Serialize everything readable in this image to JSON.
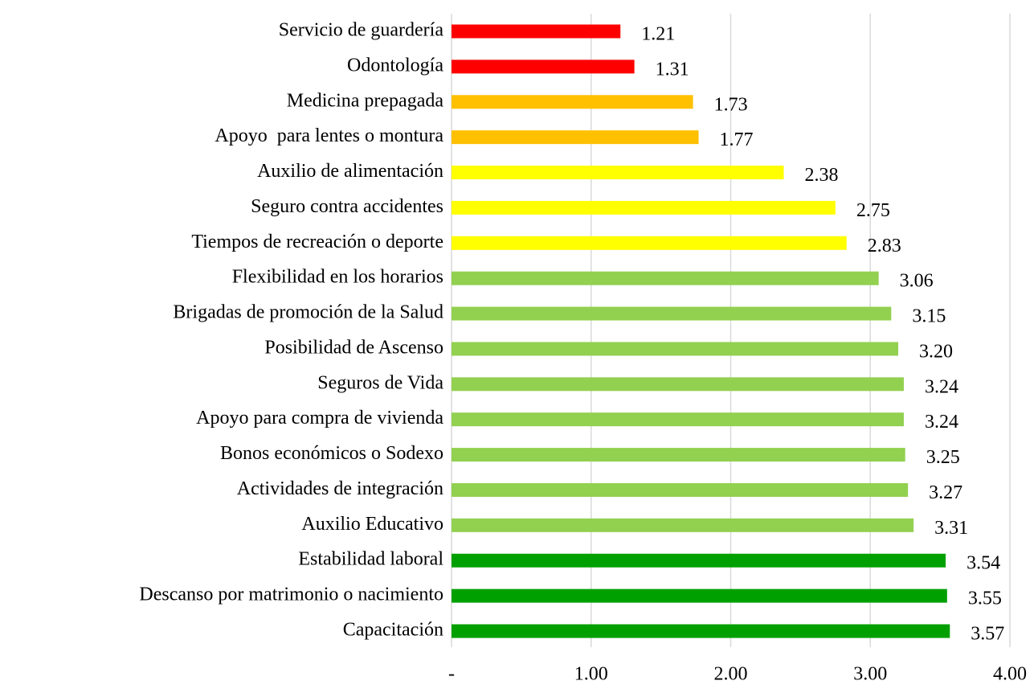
{
  "chart_data": {
    "type": "bar",
    "orientation": "horizontal",
    "categories": [
      "Servicio de guardería",
      "Odontología",
      "Medicina prepagada",
      "Apoyo  para lentes o montura",
      "Auxilio de alimentación",
      "Seguro contra accidentes",
      "Tiempos de recreación o deporte",
      "Flexibilidad en los horarios",
      "Brigadas de promoción de la Salud",
      "Posibilidad de Ascenso",
      "Seguros de Vida",
      "Apoyo para compra de vivienda",
      "Bonos económicos o Sodexo",
      "Actividades de integración",
      "Auxilio Educativo",
      "Estabilidad laboral",
      "Descanso por matrimonio o nacimiento",
      "Capacitación"
    ],
    "values": [
      1.21,
      1.31,
      1.73,
      1.77,
      2.38,
      2.75,
      2.83,
      3.06,
      3.15,
      3.2,
      3.24,
      3.24,
      3.25,
      3.27,
      3.31,
      3.54,
      3.55,
      3.57
    ],
    "value_labels": [
      "1.21",
      "1.31",
      "1.73",
      "1.77",
      "2.38",
      "2.75",
      "2.83",
      "3.06",
      "3.15",
      "3.20",
      "3.24",
      "3.24",
      "3.25",
      "3.27",
      "3.31",
      "3.54",
      "3.55",
      "3.57"
    ],
    "colors": [
      "#ff0000",
      "#ff0000",
      "#ffc000",
      "#ffc000",
      "#ffff00",
      "#ffff00",
      "#ffff00",
      "#92d050",
      "#92d050",
      "#92d050",
      "#92d050",
      "#92d050",
      "#92d050",
      "#92d050",
      "#92d050",
      "#00a000",
      "#00a000",
      "#00a000"
    ],
    "xlim": [
      0,
      4
    ],
    "xticks": [
      {
        "value": 0,
        "label": "-"
      },
      {
        "value": 1,
        "label": "1.00"
      },
      {
        "value": 2,
        "label": "2.00"
      },
      {
        "value": 3,
        "label": "3.00"
      },
      {
        "value": 4,
        "label": "4.00"
      }
    ],
    "grid": true
  }
}
